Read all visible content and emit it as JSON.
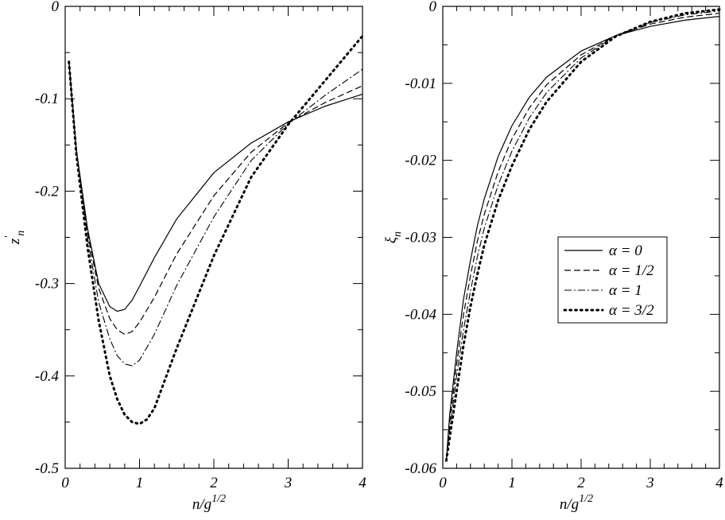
{
  "chart_data": [
    {
      "type": "line",
      "xlabel": {
        "base": "n/g",
        "sup": "1/2"
      },
      "ylabel": {
        "base": "z",
        "sup": "'",
        "sub": "n"
      },
      "xlim": [
        0,
        4
      ],
      "ylim": [
        -0.5,
        0
      ],
      "xticks": [
        0,
        1,
        2,
        3,
        4
      ],
      "xtick_labels": [
        "0",
        "1",
        "2",
        "3",
        "4"
      ],
      "yticks": [
        0,
        -0.1,
        -0.2,
        -0.3,
        -0.4,
        -0.5
      ],
      "ytick_labels": [
        "0",
        "-0.1",
        "-0.2",
        "-0.3",
        "-0.4",
        "-0.5"
      ],
      "grid": false,
      "series": [
        {
          "legend": "α = 0",
          "style": "solid",
          "x": [
            0.05,
            0.15,
            0.3,
            0.45,
            0.6,
            0.7,
            0.8,
            0.9,
            1.0,
            1.2,
            1.5,
            2.0,
            2.5,
            3.0,
            3.5,
            4.0
          ],
          "y": [
            -0.06,
            -0.155,
            -0.24,
            -0.3,
            -0.325,
            -0.33,
            -0.328,
            -0.318,
            -0.303,
            -0.272,
            -0.23,
            -0.18,
            -0.148,
            -0.125,
            -0.108,
            -0.095
          ]
        },
        {
          "legend": "α = 1/2",
          "style": "dashed",
          "x": [
            0.05,
            0.15,
            0.3,
            0.45,
            0.6,
            0.7,
            0.8,
            0.9,
            1.0,
            1.2,
            1.5,
            2.0,
            2.5,
            3.0,
            3.5,
            4.0
          ],
          "y": [
            -0.06,
            -0.155,
            -0.245,
            -0.305,
            -0.338,
            -0.35,
            -0.355,
            -0.352,
            -0.342,
            -0.315,
            -0.268,
            -0.205,
            -0.158,
            -0.126,
            -0.104,
            -0.086
          ]
        },
        {
          "legend": "α = 1",
          "style": "dashdot",
          "x": [
            0.05,
            0.15,
            0.3,
            0.45,
            0.6,
            0.7,
            0.8,
            0.9,
            1.0,
            1.2,
            1.5,
            2.0,
            2.5,
            3.0,
            3.5,
            4.0
          ],
          "y": [
            -0.06,
            -0.155,
            -0.25,
            -0.32,
            -0.36,
            -0.378,
            -0.387,
            -0.389,
            -0.383,
            -0.355,
            -0.302,
            -0.228,
            -0.167,
            -0.127,
            -0.096,
            -0.068
          ]
        },
        {
          "legend": "α = 3/2",
          "style": "dotted",
          "x": [
            0.05,
            0.15,
            0.3,
            0.45,
            0.6,
            0.7,
            0.8,
            0.9,
            1.0,
            1.1,
            1.2,
            1.5,
            2.0,
            2.5,
            3.0,
            3.5,
            4.0
          ],
          "y": [
            -0.06,
            -0.16,
            -0.26,
            -0.34,
            -0.4,
            -0.425,
            -0.442,
            -0.45,
            -0.452,
            -0.447,
            -0.435,
            -0.37,
            -0.27,
            -0.185,
            -0.128,
            -0.08,
            -0.032
          ]
        }
      ]
    },
    {
      "type": "line",
      "xlabel": {
        "base": "n/g",
        "sup": "1/2"
      },
      "ylabel": {
        "base": "ξ",
        "sub": "n"
      },
      "xlim": [
        0,
        4
      ],
      "ylim": [
        -0.06,
        0
      ],
      "xticks": [
        0,
        1,
        2,
        3,
        4
      ],
      "xtick_labels": [
        "0",
        "1",
        "2",
        "3",
        "4"
      ],
      "yticks": [
        0,
        -0.01,
        -0.02,
        -0.03,
        -0.04,
        -0.05,
        -0.06
      ],
      "ytick_labels": [
        "0",
        "-0.01",
        "-0.02",
        "-0.03",
        "-0.04",
        "-0.05",
        "-0.06"
      ],
      "grid": false,
      "legend_position": "center-right",
      "legend": [
        "α = 0",
        "α = 1/2",
        "α = 1",
        "α = 3/2"
      ],
      "series": [
        {
          "legend": "α = 0",
          "style": "solid",
          "x": [
            0.05,
            0.1,
            0.2,
            0.3,
            0.4,
            0.5,
            0.6,
            0.8,
            1.0,
            1.25,
            1.5,
            2.0,
            2.5,
            3.0,
            3.5,
            4.0
          ],
          "y": [
            -0.059,
            -0.053,
            -0.045,
            -0.038,
            -0.033,
            -0.0285,
            -0.025,
            -0.0195,
            -0.0155,
            -0.0118,
            -0.0092,
            -0.0058,
            -0.0038,
            -0.0026,
            -0.0018,
            -0.0013
          ]
        },
        {
          "legend": "α = 1/2",
          "style": "dashed",
          "x": [
            0.05,
            0.1,
            0.2,
            0.3,
            0.4,
            0.5,
            0.6,
            0.8,
            1.0,
            1.25,
            1.5,
            2.0,
            2.5,
            3.0,
            3.5,
            4.0
          ],
          "y": [
            -0.059,
            -0.054,
            -0.0465,
            -0.04,
            -0.035,
            -0.0305,
            -0.027,
            -0.0215,
            -0.0172,
            -0.0132,
            -0.0102,
            -0.0063,
            -0.0038,
            -0.0023,
            -0.0014,
            -0.0009
          ]
        },
        {
          "legend": "α = 1",
          "style": "dashdot",
          "x": [
            0.05,
            0.1,
            0.2,
            0.3,
            0.4,
            0.5,
            0.6,
            0.8,
            1.0,
            1.25,
            1.5,
            2.0,
            2.5,
            3.0,
            3.5,
            4.0
          ],
          "y": [
            -0.059,
            -0.055,
            -0.048,
            -0.042,
            -0.037,
            -0.0325,
            -0.0288,
            -0.0232,
            -0.0188,
            -0.0145,
            -0.0112,
            -0.0067,
            -0.0038,
            -0.0021,
            -0.0011,
            -0.0006
          ]
        },
        {
          "legend": "α = 3/2",
          "style": "dotted",
          "x": [
            0.05,
            0.1,
            0.2,
            0.3,
            0.4,
            0.5,
            0.6,
            0.8,
            1.0,
            1.25,
            1.5,
            2.0,
            2.5,
            3.0,
            3.5,
            4.0
          ],
          "y": [
            -0.059,
            -0.056,
            -0.05,
            -0.044,
            -0.039,
            -0.0348,
            -0.031,
            -0.0252,
            -0.0207,
            -0.016,
            -0.0124,
            -0.0072,
            -0.0039,
            -0.002,
            -0.0009,
            -0.0004
          ]
        }
      ]
    }
  ]
}
